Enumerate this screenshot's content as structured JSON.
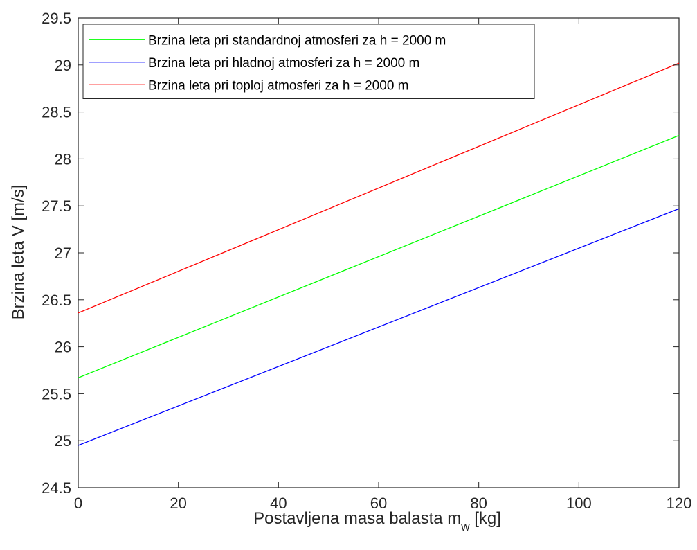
{
  "chart_data": {
    "type": "line",
    "title": "",
    "xlabel": "Postavljena masa balasta m",
    "xlabel_sub": "w",
    "xlabel_unit": " [kg]",
    "ylabel": "Brzina leta V [m/s]",
    "xlim": [
      0,
      120
    ],
    "ylim": [
      24.5,
      29.5
    ],
    "xticks": [
      0,
      20,
      40,
      60,
      80,
      100,
      120
    ],
    "yticks": [
      24.5,
      25,
      25.5,
      26,
      26.5,
      27,
      27.5,
      28,
      28.5,
      29,
      29.5
    ],
    "grid": false,
    "legend_position": "top-left",
    "series": [
      {
        "name": "Brzina leta pri standardnoj atmosferi za h = 2000 m",
        "color": "#00ff00",
        "x": [
          0,
          120
        ],
        "y": [
          25.67,
          28.25
        ]
      },
      {
        "name": "Brzina leta pri hladnoj atmosferi za h = 2000 m",
        "color": "#0000ff",
        "x": [
          0,
          120
        ],
        "y": [
          24.95,
          27.47
        ]
      },
      {
        "name": "Brzina leta pri toploj atmosferi za h = 2000 m",
        "color": "#ff0000",
        "x": [
          0,
          120
        ],
        "y": [
          26.36,
          29.02
        ]
      }
    ]
  }
}
